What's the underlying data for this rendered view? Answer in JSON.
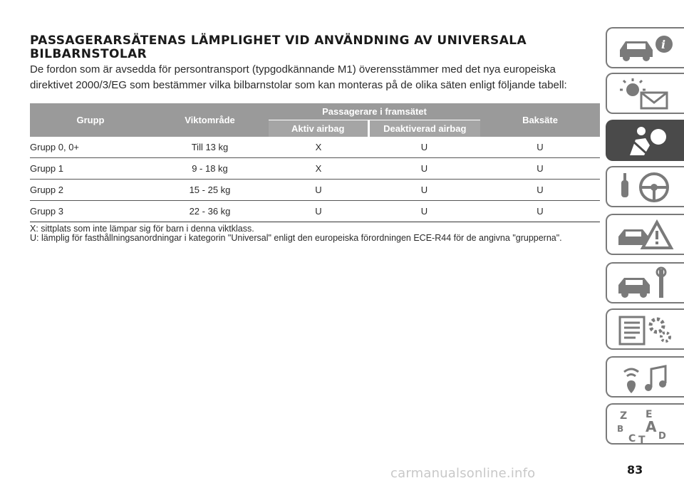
{
  "section": {
    "title": "PASSAGERARSÄTENAS LÄMPLIGHET VID ANVÄNDNING AV UNIVERSALA BILBARNSTOLAR",
    "intro": "De fordon som är avsedda för persontransport (typgodkännande M1) överensstämmer med det nya europeiska direktivet 2000/3/EG som bestämmer vilka bilbarnstolar som kan monteras på de olika säten enligt följande tabell:"
  },
  "table": {
    "headers": {
      "group": "Grupp",
      "weight": "Viktområde",
      "front": "Passagerare i framsätet",
      "airbag_active": "Aktiv airbag",
      "airbag_inactive": "Deaktiverad airbag",
      "rear": "Baksäte"
    },
    "rows": [
      [
        "Grupp 0, 0+",
        "Till 13 kg",
        "X",
        "U",
        "U"
      ],
      [
        "Grupp 1",
        "9 - 18 kg",
        "X",
        "U",
        "U"
      ],
      [
        "Grupp 2",
        "15 - 25 kg",
        "U",
        "U",
        "U"
      ],
      [
        "Grupp 3",
        "22 - 36 kg",
        "U",
        "U",
        "U"
      ]
    ]
  },
  "notes": [
    "X: sittplats som inte lämpar sig för barn i denna viktklass.",
    "U: lämplig för fasthållningsanordningar i kategorin \"Universal\" enligt den europeiska förordningen ECE-R44 för de angivna \"grupperna\"."
  ],
  "sidebar": {
    "tabs": [
      {
        "icon": "car-info-icon",
        "active": false
      },
      {
        "icon": "warning-lights-icon",
        "active": false
      },
      {
        "icon": "safety-airbag-icon",
        "active": true
      },
      {
        "icon": "key-steering-wheel-icon",
        "active": false
      },
      {
        "icon": "car-emergency-icon",
        "active": false
      },
      {
        "icon": "car-maintenance-icon",
        "active": false
      },
      {
        "icon": "technical-data-icon",
        "active": false
      },
      {
        "icon": "multimedia-icon",
        "active": false
      },
      {
        "icon": "alphabetical-index-icon",
        "active": false
      }
    ],
    "index_letters": [
      "Z",
      "E",
      "B",
      "A",
      "C",
      "T",
      "D"
    ]
  },
  "page_number": "83",
  "watermark": "carmanualsonline.info",
  "colors": {
    "header_bg": "#9a9a9a",
    "tab_active": "#4a4a4a",
    "tab_border": "#7a7a7a"
  }
}
